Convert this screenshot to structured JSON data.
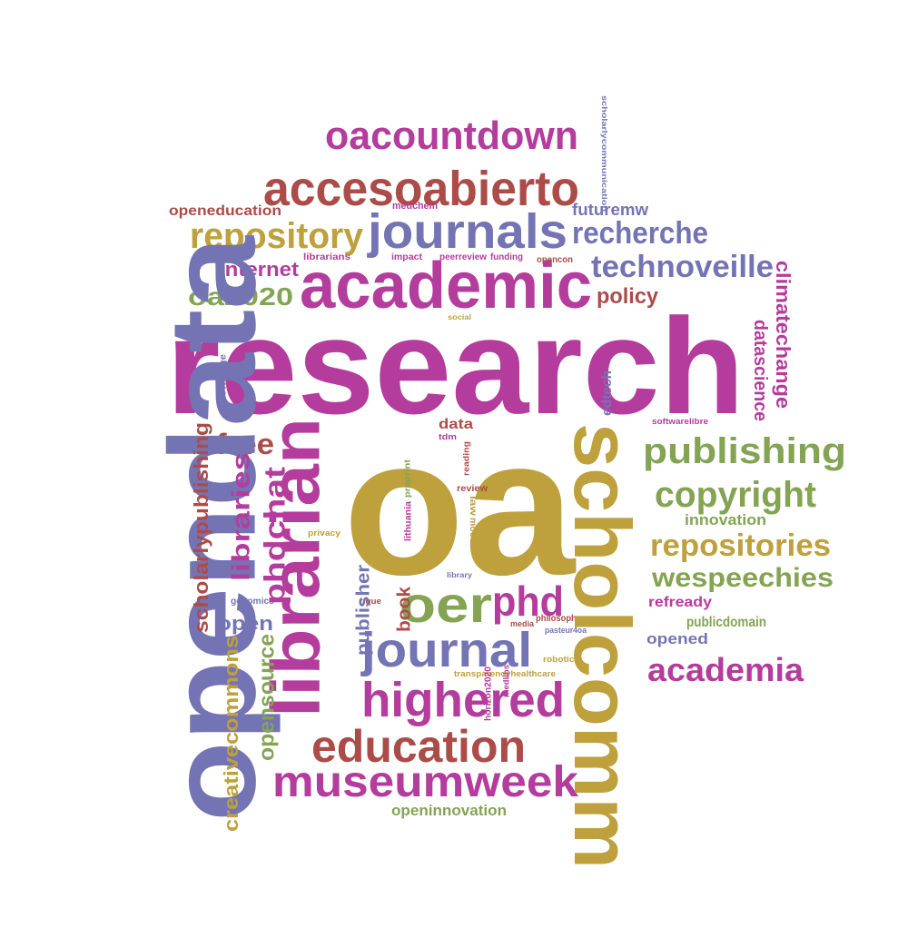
{
  "palette": {
    "blue": "#7474b4",
    "magenta": "#b43c9c",
    "gold": "#bea03c",
    "red": "#ac4c48",
    "green": "#84a454"
  },
  "words": [
    {
      "text": "research",
      "color": "magenta"
    },
    {
      "text": "oa",
      "color": "gold"
    },
    {
      "text": "opendata",
      "color": "blue"
    },
    {
      "text": "scholcomm",
      "color": "gold"
    },
    {
      "text": "librarian",
      "color": "magenta"
    },
    {
      "text": "academic",
      "color": "magenta"
    },
    {
      "text": "accesoabierto",
      "color": "red"
    },
    {
      "text": "oacountdown",
      "color": "magenta"
    },
    {
      "text": "journals",
      "color": "blue"
    },
    {
      "text": "repository",
      "color": "gold"
    },
    {
      "text": "recherche",
      "color": "blue"
    },
    {
      "text": "technoveille",
      "color": "blue"
    },
    {
      "text": "publishing",
      "color": "green"
    },
    {
      "text": "copyright",
      "color": "green"
    },
    {
      "text": "repositories",
      "color": "gold"
    },
    {
      "text": "wespeechies",
      "color": "green"
    },
    {
      "text": "oer",
      "color": "green"
    },
    {
      "text": "phd",
      "color": "magenta"
    },
    {
      "text": "journal",
      "color": "blue"
    },
    {
      "text": "highered",
      "color": "magenta"
    },
    {
      "text": "education",
      "color": "red"
    },
    {
      "text": "museumweek",
      "color": "magenta"
    },
    {
      "text": "academia",
      "color": "magenta"
    },
    {
      "text": "oa2020",
      "color": "green"
    },
    {
      "text": "internet",
      "color": "magenta"
    },
    {
      "text": "openeducation",
      "color": "red"
    },
    {
      "text": "futuremw",
      "color": "blue"
    },
    {
      "text": "policy",
      "color": "red"
    },
    {
      "text": "climatechange",
      "color": "magenta"
    },
    {
      "text": "datascience",
      "color": "magenta"
    },
    {
      "text": "edtech",
      "color": "blue"
    },
    {
      "text": "free",
      "color": "red"
    },
    {
      "text": "phdchat",
      "color": "magenta"
    },
    {
      "text": "libraries",
      "color": "magenta"
    },
    {
      "text": "scholarlypublishing",
      "color": "red"
    },
    {
      "text": "creativecommons",
      "color": "gold"
    },
    {
      "text": "opensource",
      "color": "green"
    },
    {
      "text": "open",
      "color": "blue"
    },
    {
      "text": "publisher",
      "color": "blue"
    },
    {
      "text": "book",
      "color": "red"
    },
    {
      "text": "innovation",
      "color": "green"
    },
    {
      "text": "refready",
      "color": "magenta"
    },
    {
      "text": "publicdomain",
      "color": "green"
    },
    {
      "text": "opened",
      "color": "blue"
    },
    {
      "text": "openinnovation",
      "color": "green"
    },
    {
      "text": "data",
      "color": "red"
    },
    {
      "text": "medchem",
      "color": "magenta"
    },
    {
      "text": "librarians",
      "color": "magenta"
    },
    {
      "text": "impact",
      "color": "magenta"
    },
    {
      "text": "peerreview",
      "color": "magenta"
    },
    {
      "text": "funding",
      "color": "magenta"
    },
    {
      "text": "opencon",
      "color": "red"
    },
    {
      "text": "social",
      "color": "gold"
    },
    {
      "text": "knowledge",
      "color": "blue"
    },
    {
      "text": "tdm",
      "color": "magenta"
    },
    {
      "text": "reading",
      "color": "red"
    },
    {
      "text": "preprint",
      "color": "green"
    },
    {
      "text": "review",
      "color": "red"
    },
    {
      "text": "lithuania",
      "color": "magenta"
    },
    {
      "text": "law",
      "color": "gold"
    },
    {
      "text": "moocs",
      "color": "gold"
    },
    {
      "text": "privacy",
      "color": "gold"
    },
    {
      "text": "genomics",
      "color": "blue"
    },
    {
      "text": "rique",
      "color": "red"
    },
    {
      "text": "library",
      "color": "blue"
    },
    {
      "text": "media",
      "color": "red"
    },
    {
      "text": "philosophy",
      "color": "red"
    },
    {
      "text": "pasteur4oa",
      "color": "blue"
    },
    {
      "text": "robotics",
      "color": "gold"
    },
    {
      "text": "transparencyhealthcare",
      "color": "gold"
    },
    {
      "text": "horizon2020",
      "color": "magenta"
    },
    {
      "text": "medlibs",
      "color": "magenta"
    },
    {
      "text": "softwarelibre",
      "color": "magenta"
    },
    {
      "text": "scholarlycommunication",
      "color": "blue"
    }
  ]
}
